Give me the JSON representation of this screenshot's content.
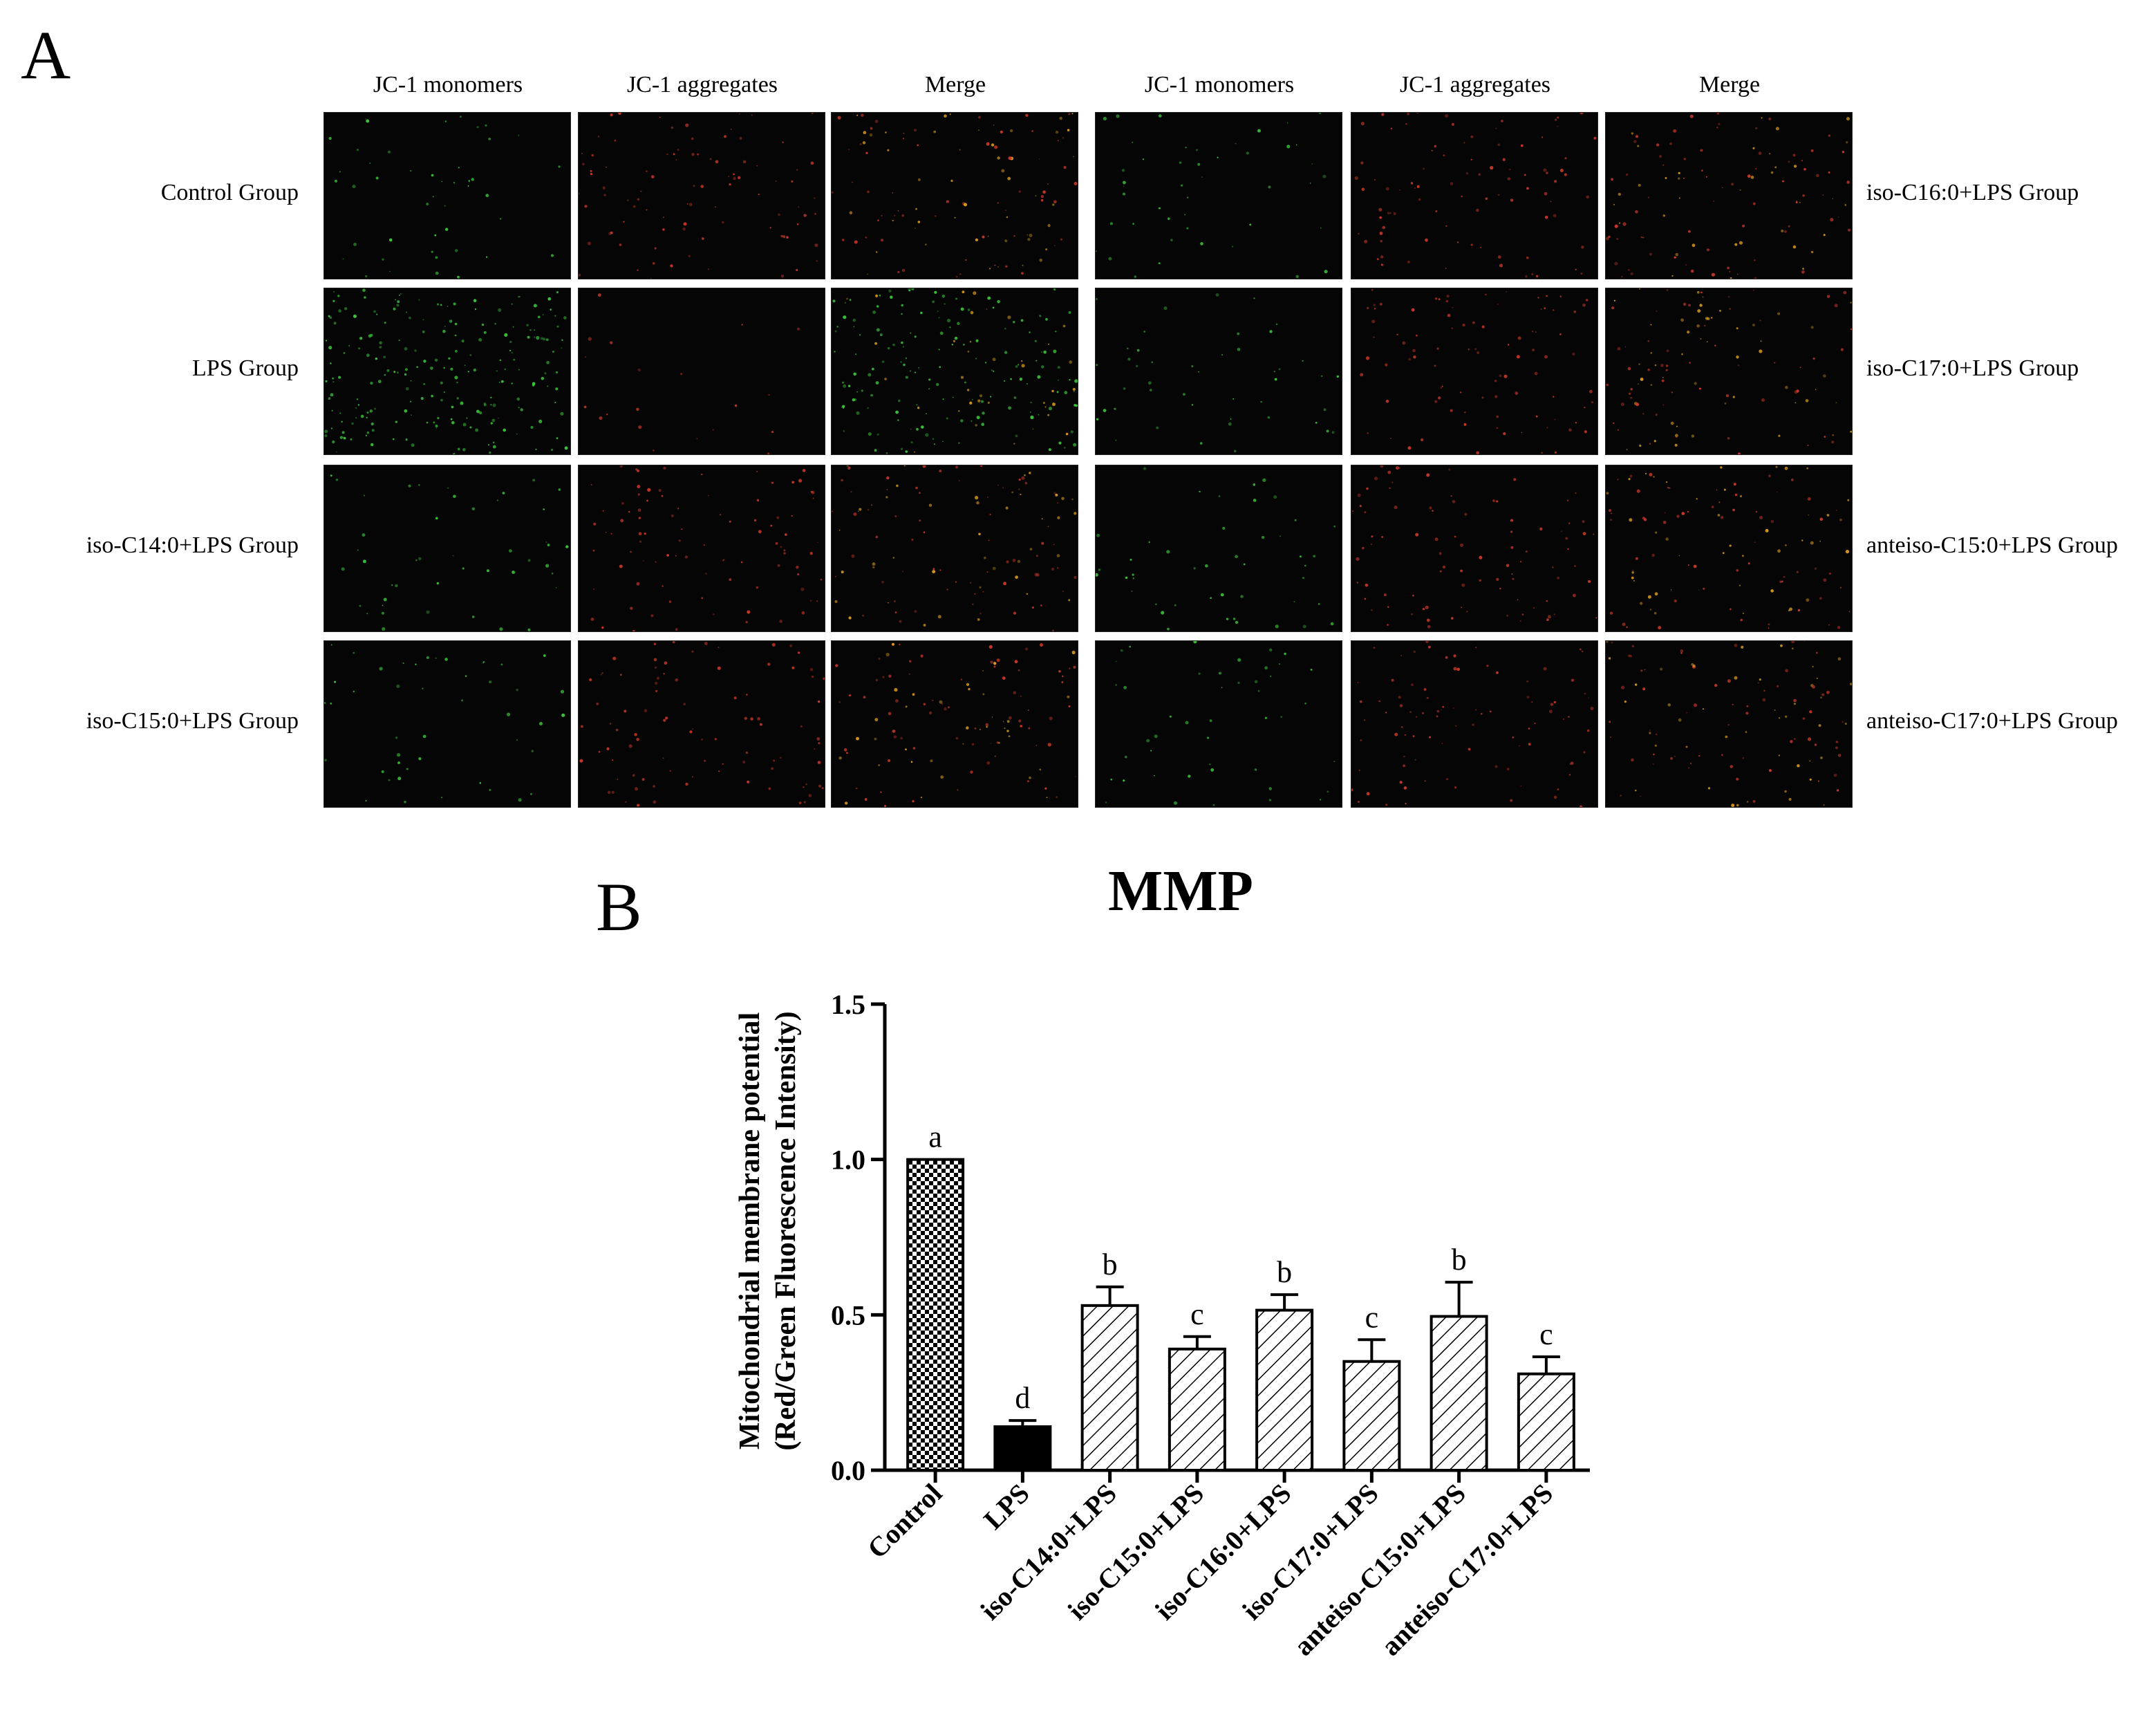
{
  "panel_a": {
    "letter": "A",
    "column_headers": [
      "JC-1 monomers",
      "JC-1 aggregates",
      "Merge",
      "JC-1 monomers",
      "JC-1 aggregates",
      "Merge"
    ],
    "left_groups": [
      "Control Group",
      "LPS Group",
      "iso-C14:0+LPS Group",
      "iso-C15:0+LPS Group"
    ],
    "right_groups": [
      "iso-C16:0+LPS Group",
      "iso-C17:0+LPS Group",
      "anteiso-C15:0+LPS Group",
      "anteiso-C17:0+LPS Group"
    ],
    "colors": {
      "monomer": "#3ecf3e",
      "aggregate": "#d23a2a",
      "merge": "#e0a020",
      "background": "#050505"
    }
  },
  "panel_b": {
    "letter": "B"
  },
  "chart_data": {
    "type": "bar",
    "title": "MMP",
    "ylabel": "Mitochondrial membrane potential",
    "ylabel2": "(Red/Green Fluorescence Intensity)",
    "xlabel": "",
    "ylim": [
      0,
      1.5
    ],
    "yticks": [
      "0.0",
      "0.5",
      "1.0",
      "1.5"
    ],
    "categories": [
      "Control",
      "LPS",
      "iso-C14:0+LPS",
      "iso-C15:0+LPS",
      "iso-C16:0+LPS",
      "iso-C17:0+LPS",
      "anteiso-C15:0+LPS",
      "anteiso-C17:0+LPS"
    ],
    "values": [
      1.0,
      0.14,
      0.53,
      0.39,
      0.515,
      0.35,
      0.495,
      0.31
    ],
    "errors": [
      0.0,
      0.02,
      0.06,
      0.04,
      0.05,
      0.07,
      0.11,
      0.055
    ],
    "significance": [
      "a",
      "d",
      "b",
      "c",
      "b",
      "c",
      "b",
      "c"
    ],
    "patterns": [
      "checker",
      "solid",
      "hatch",
      "hatch",
      "hatch",
      "hatch",
      "hatch",
      "hatch"
    ],
    "grid": false,
    "legend": "none"
  }
}
